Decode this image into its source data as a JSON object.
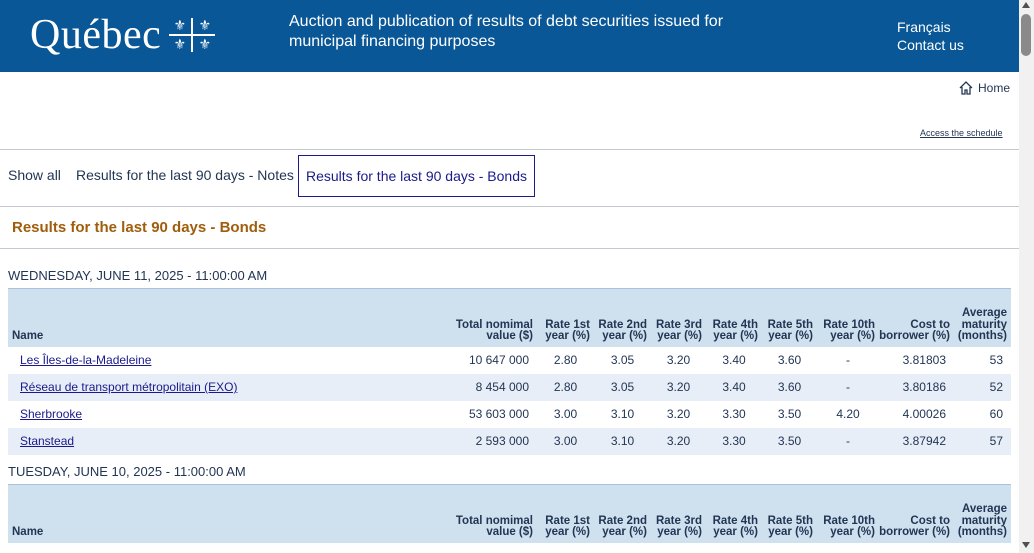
{
  "header": {
    "logo_text": "Québec",
    "title": "Auction and publication of results of debt securities issued for municipal financing purposes",
    "lang_link": "Français",
    "contact_link": "Contact us"
  },
  "nav": {
    "home": "Home",
    "schedule": "Access the schedule"
  },
  "tabs": [
    {
      "label": "Show all"
    },
    {
      "label": "Results for the last 90 days - Notes"
    },
    {
      "label": "Results for the last 90 days - Bonds"
    }
  ],
  "section_title": "Results for the last 90 days - Bonds",
  "columns": {
    "name": "Name",
    "total": "Total nomimal value ($)",
    "r1": "Rate 1st year (%)",
    "r2": "Rate 2nd year (%)",
    "r3": "Rate 3rd year (%)",
    "r4": "Rate 4th year (%)",
    "r5": "Rate 5th year (%)",
    "r10": "Rate 10th year (%)",
    "cost": "Cost to borrower (%)",
    "avg": "Average maturity (months)"
  },
  "days": [
    {
      "title": "WEDNESDAY, JUNE 11, 2025 - 11:00:00 AM",
      "rows": [
        {
          "name": "Les Îles-de-la-Madeleine",
          "total": "10 647 000",
          "r1": "2.80",
          "r2": "3.05",
          "r3": "3.20",
          "r4": "3.40",
          "r5": "3.60",
          "r10": "-",
          "cost": "3.81803",
          "avg": "53"
        },
        {
          "name": "Réseau de transport métropolitain (EXO)",
          "total": "8 454 000",
          "r1": "2.80",
          "r2": "3.05",
          "r3": "3.20",
          "r4": "3.40",
          "r5": "3.60",
          "r10": "-",
          "cost": "3.80186",
          "avg": "52"
        },
        {
          "name": "Sherbrooke",
          "total": "53 603 000",
          "r1": "3.00",
          "r2": "3.10",
          "r3": "3.20",
          "r4": "3.30",
          "r5": "3.50",
          "r10": "4.20",
          "cost": "4.00026",
          "avg": "60"
        },
        {
          "name": "Stanstead",
          "total": "2 593 000",
          "r1": "3.00",
          "r2": "3.10",
          "r3": "3.20",
          "r4": "3.30",
          "r5": "3.50",
          "r10": "-",
          "cost": "3.87942",
          "avg": "57"
        }
      ]
    },
    {
      "title": "TUESDAY, JUNE 10, 2025 - 11:00:00 AM",
      "rows": []
    }
  ]
}
